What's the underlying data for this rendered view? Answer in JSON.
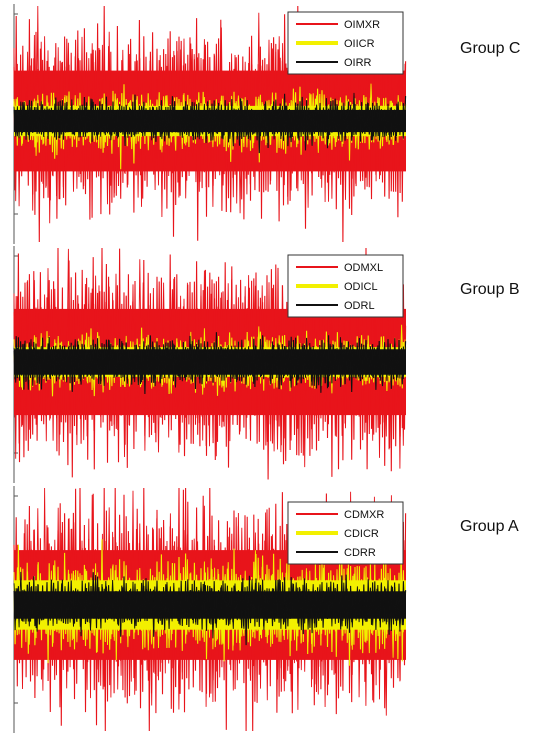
{
  "chart_data": [
    {
      "type": "line",
      "group_label": "Group C",
      "legend_position": "top-right",
      "series": [
        {
          "name": "OIMXR",
          "color": "#e8141b",
          "approx_amplitude": 1.0
        },
        {
          "name": "OIICR",
          "color": "#f2f000",
          "approx_amplitude": 0.3
        },
        {
          "name": "OIRR",
          "color": "#111111",
          "approx_amplitude": 0.22
        }
      ]
    },
    {
      "type": "line",
      "group_label": "Group B",
      "legend_position": "top-right",
      "series": [
        {
          "name": "ODMXL",
          "color": "#e8141b",
          "approx_amplitude": 1.0
        },
        {
          "name": "ODICL",
          "color": "#f2f000",
          "approx_amplitude": 0.28
        },
        {
          "name": "ODRL",
          "color": "#111111",
          "approx_amplitude": 0.24
        }
      ]
    },
    {
      "type": "line",
      "group_label": "Group A",
      "legend_position": "top-right",
      "series": [
        {
          "name": "CDMXR",
          "color": "#e8141b",
          "approx_amplitude": 1.0
        },
        {
          "name": "CDICR",
          "color": "#f2f000",
          "approx_amplitude": 0.45
        },
        {
          "name": "CDRR",
          "color": "#111111",
          "approx_amplitude": 0.25
        }
      ]
    }
  ]
}
